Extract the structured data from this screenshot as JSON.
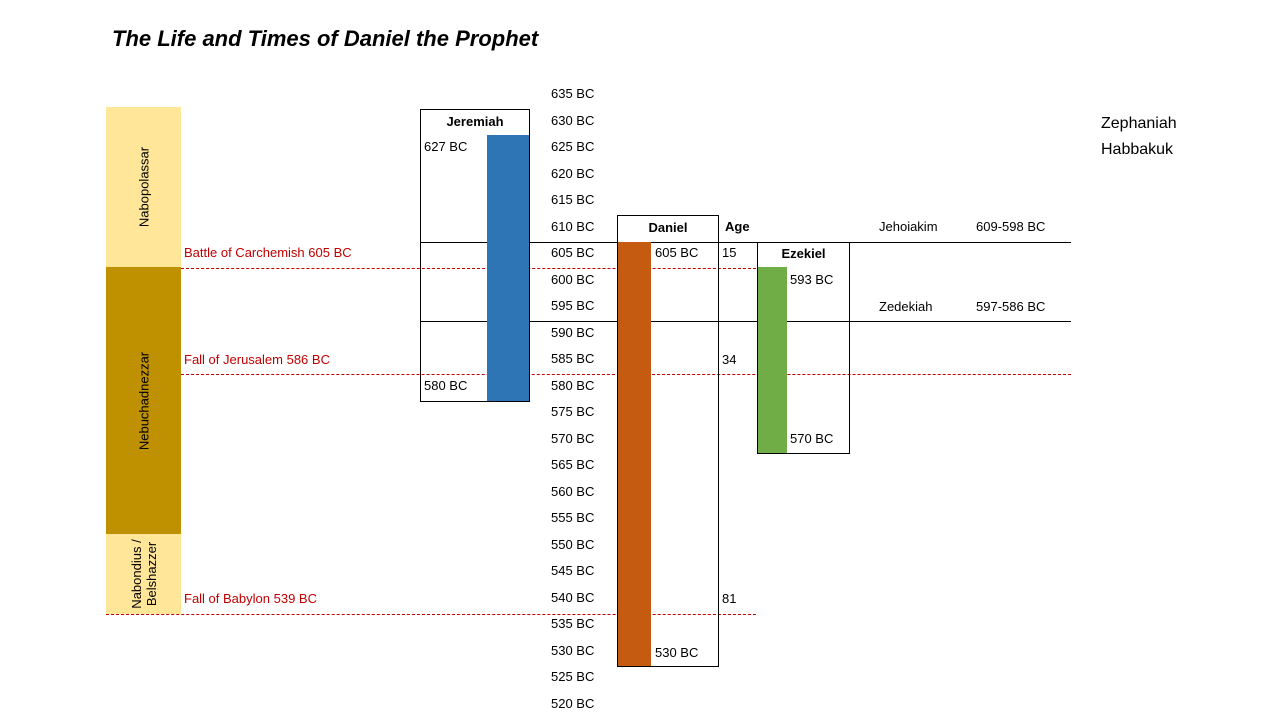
{
  "title": "The Life and Times of Daniel the Prophet",
  "years": [
    "635 BC",
    "630 BC",
    "625 BC",
    "620 BC",
    "615 BC",
    "610 BC",
    "605 BC",
    "600 BC",
    "595 BC",
    "590 BC",
    "585 BC",
    "580 BC",
    "575 BC",
    "570 BC",
    "565 BC",
    "560 BC",
    "555 BC",
    "550 BC",
    "545 BC",
    "540 BC",
    "535 BC",
    "530 BC",
    "525 BC",
    "520 BC"
  ],
  "kings": {
    "nabopolassar": "Nabopolassar",
    "nebuchadnezzar": "Nebuchadnezzar",
    "nabonidus_line1": "Nabondius /",
    "nabonidus_line2": "Belshazzer"
  },
  "events": {
    "carchemish": "Battle of Carchemish 605 BC",
    "jerusalem": "Fall of Jerusalem 586 BC",
    "babylon": "Fall of Babylon 539 BC"
  },
  "jeremiah": {
    "name": "Jeremiah",
    "start": "627 BC",
    "end": "580 BC"
  },
  "daniel": {
    "name": "Daniel",
    "start": "605 BC",
    "end": "530 BC"
  },
  "ezekiel": {
    "name": "Ezekiel",
    "start": "593 BC",
    "end": "570 BC"
  },
  "age": {
    "header": "Age",
    "values": [
      "15",
      "34",
      "81"
    ]
  },
  "judah_kings": [
    {
      "name": "Jehoiakim",
      "reign": "609-598 BC"
    },
    {
      "name": "Zedekiah",
      "reign": "597-586 BC"
    }
  ],
  "other_prophets": [
    "Zephaniah",
    "Habbakuk"
  ],
  "colors": {
    "nabopolassar": "#ffe699",
    "nebuchadnezzar": "#bf9000",
    "nabonidus": "#ffe699",
    "jeremiah_bar": "#2e75b6",
    "daniel_bar": "#c55a11",
    "ezekiel_bar": "#70ad47",
    "event_text": "#c00000"
  }
}
